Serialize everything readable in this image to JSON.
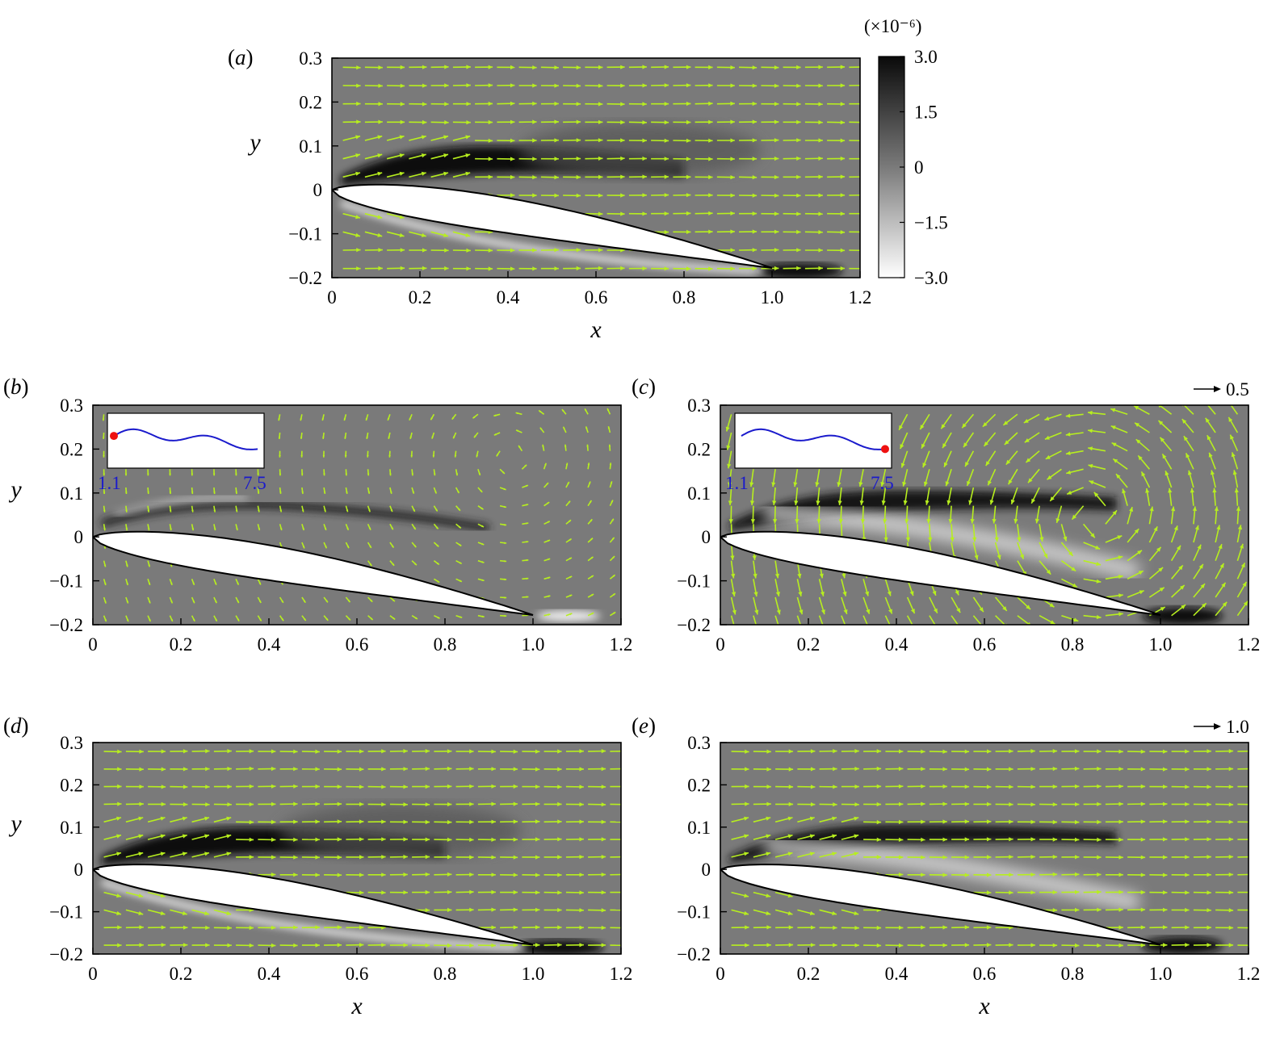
{
  "figure": {
    "colorbar": {
      "unit": "(×10⁻⁶)",
      "ticks": [
        "3.0",
        "1.5",
        "0",
        "−1.5",
        "−3.0"
      ],
      "values": [
        3.0,
        1.5,
        0,
        -1.5,
        -3.0
      ],
      "range": [
        -3.0,
        3.0
      ],
      "colors": {
        "high": "#0a0a0a",
        "mid": "#7a7a7a",
        "low": "#ffffff"
      }
    },
    "vector_color": "#b7ee1f",
    "inset_color": "#1a1acc",
    "marker_color": "#ee1111",
    "reference_arrows": [
      {
        "panel": "c",
        "label": "0.5"
      },
      {
        "panel": "e",
        "label": "1.0"
      }
    ]
  },
  "chart_data": [
    {
      "panel": "(a)",
      "letter": "a",
      "type": "heatmap",
      "xlabel": "x",
      "ylabel": "y",
      "xlim": [
        0,
        1.2
      ],
      "ylim": [
        -0.2,
        0.3
      ],
      "xticks": [
        "0",
        "0.2",
        "0.4",
        "0.6",
        "0.8",
        "1.0",
        "1.2"
      ],
      "yticks": [
        "−0.2",
        "−0.1",
        "0",
        "0.1",
        "0.2",
        "0.3"
      ],
      "vector_field": "uniform",
      "feature": "dark-shear-layer",
      "inset": null
    },
    {
      "panel": "(b)",
      "letter": "b",
      "type": "heatmap",
      "xlabel": "",
      "ylabel": "y",
      "xlim": [
        0,
        1.2
      ],
      "ylim": [
        -0.2,
        0.3
      ],
      "xticks": [
        "0",
        "0.2",
        "0.4",
        "0.6",
        "0.8",
        "1.0",
        "1.2"
      ],
      "yticks": [
        "−0.2",
        "−0.1",
        "0",
        "0.1",
        "0.2",
        "0.3"
      ],
      "vector_field": "weak-vortex",
      "feature": "thin-shear-layer",
      "inset": {
        "x_start": "1.1",
        "x_end": "7.5",
        "marker": "start"
      }
    },
    {
      "panel": "(c)",
      "letter": "c",
      "type": "heatmap",
      "xlabel": "",
      "ylabel": "",
      "xlim": [
        0,
        1.2
      ],
      "ylim": [
        -0.2,
        0.3
      ],
      "xticks": [
        "0",
        "0.2",
        "0.4",
        "0.6",
        "0.8",
        "1.0",
        "1.2"
      ],
      "yticks": [
        "−0.2",
        "−0.1",
        "0",
        "0.1",
        "0.2",
        "0.3"
      ],
      "vector_field": "strong-vortex",
      "feature": "mixed-shear-layer",
      "inset": {
        "x_start": "1.1",
        "x_end": "7.5",
        "marker": "end"
      }
    },
    {
      "panel": "(d)",
      "letter": "d",
      "type": "heatmap",
      "xlabel": "x",
      "ylabel": "y",
      "xlim": [
        0,
        1.2
      ],
      "ylim": [
        -0.2,
        0.3
      ],
      "xticks": [
        "0",
        "0.2",
        "0.4",
        "0.6",
        "0.8",
        "1.0",
        "1.2"
      ],
      "yticks": [
        "−0.2",
        "−0.1",
        "0",
        "0.1",
        "0.2",
        "0.3"
      ],
      "vector_field": "uniform",
      "feature": "dark-shear-layer",
      "inset": null
    },
    {
      "panel": "(e)",
      "letter": "e",
      "type": "heatmap",
      "xlabel": "x",
      "ylabel": "",
      "xlim": [
        0,
        1.2
      ],
      "ylim": [
        -0.2,
        0.3
      ],
      "xticks": [
        "0",
        "0.2",
        "0.4",
        "0.6",
        "0.8",
        "1.0",
        "1.2"
      ],
      "yticks": [
        "−0.2",
        "−0.1",
        "0",
        "0.1",
        "0.2",
        "0.3"
      ],
      "vector_field": "uniform",
      "feature": "mixed-shear-layer",
      "inset": null
    }
  ]
}
